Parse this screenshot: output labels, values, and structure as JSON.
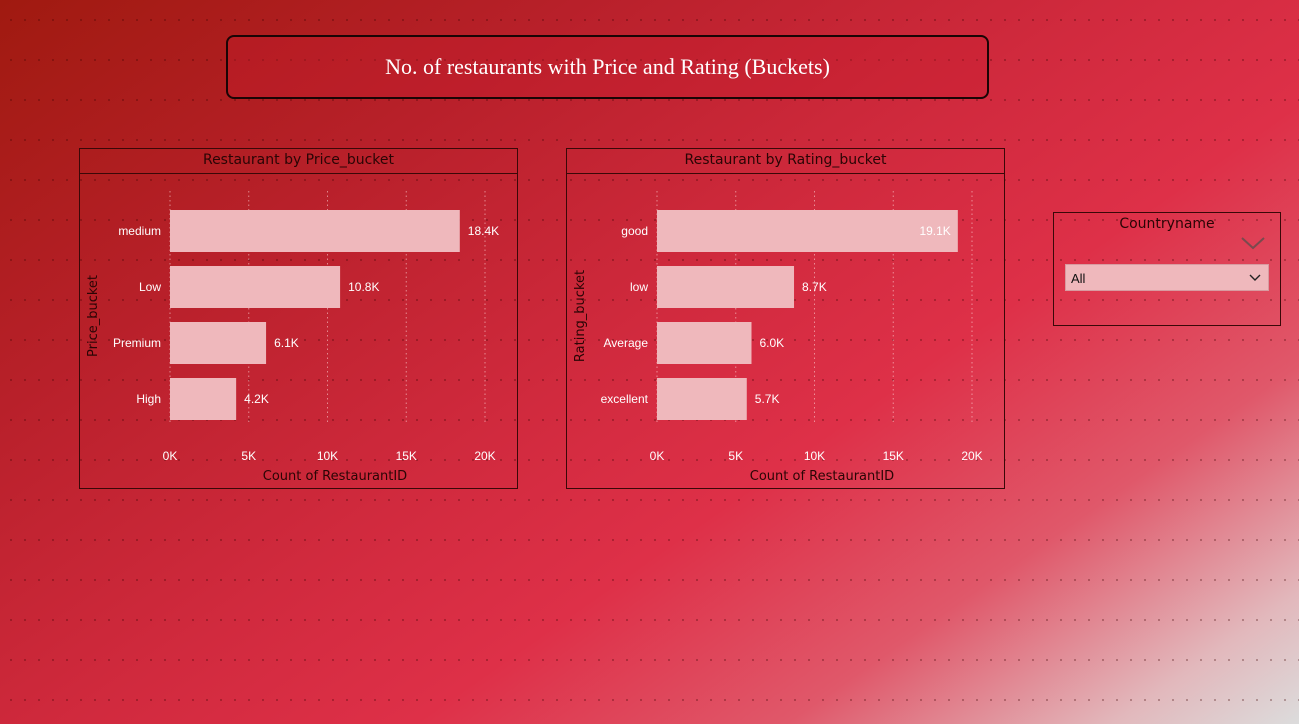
{
  "page_title": "No. of restaurants with Price and Rating (Buckets)",
  "chart_data": [
    {
      "type": "bar",
      "orientation": "horizontal",
      "title": "Restaurant by Price_bucket",
      "categories": [
        "medium",
        "Low",
        "Premium",
        "High"
      ],
      "values": [
        18400,
        10800,
        6100,
        4200
      ],
      "data_labels": [
        "18.4K",
        "10.8K",
        "6.1K",
        "4.2K"
      ],
      "xlabel": "Count of RestaurantID",
      "ylabel": "Price_bucket",
      "xlim": [
        0,
        20000
      ],
      "ticks": [
        0,
        5000,
        10000,
        15000,
        20000
      ],
      "tick_labels": [
        "0K",
        "5K",
        "10K",
        "15K",
        "20K"
      ],
      "grid": true,
      "bar_color": "#efb8bc"
    },
    {
      "type": "bar",
      "orientation": "horizontal",
      "title": "Restaurant by Rating_bucket",
      "categories": [
        "good",
        "low",
        "Average",
        "excellent"
      ],
      "values": [
        19100,
        8700,
        6000,
        5700
      ],
      "data_labels": [
        "19.1K",
        "8.7K",
        "6.0K",
        "5.7K"
      ],
      "xlabel": "Count of RestaurantID",
      "ylabel": "Rating_bucket",
      "xlim": [
        0,
        20000
      ],
      "ticks": [
        0,
        5000,
        10000,
        15000,
        20000
      ],
      "tick_labels": [
        "0K",
        "5K",
        "10K",
        "15K",
        "20K"
      ],
      "grid": true,
      "bar_color": "#efb8bc"
    }
  ],
  "slicer": {
    "title": "Countryname",
    "selected": "All",
    "chevron_icon": "chevron-down-icon"
  }
}
